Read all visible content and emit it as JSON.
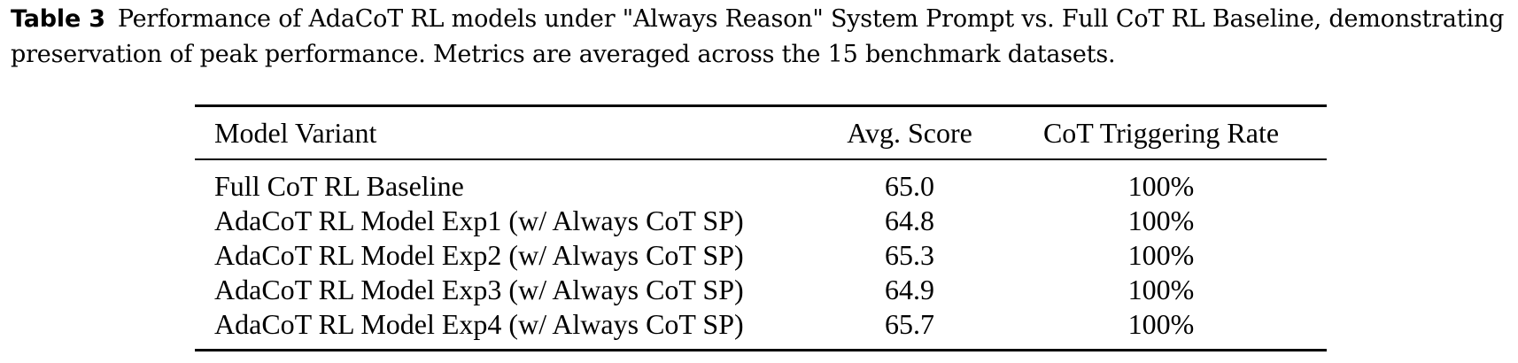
{
  "caption": {
    "label": "Table 3",
    "text": "Performance of AdaCoT RL models under \"Always Reason\" System Prompt vs. Full CoT RL Baseline, demonstrating preservation of peak performance. Metrics are averaged across the 15 benchmark datasets."
  },
  "table": {
    "headers": {
      "model": "Model Variant",
      "score": "Avg. Score",
      "rate": "CoT Triggering Rate"
    },
    "rows": [
      {
        "model": "Full CoT RL Baseline",
        "score": "65.0",
        "rate": "100%"
      },
      {
        "model": "AdaCoT RL Model Exp1 (w/ Always CoT SP)",
        "score": "64.8",
        "rate": "100%"
      },
      {
        "model": "AdaCoT RL Model Exp2 (w/ Always CoT SP)",
        "score": "65.3",
        "rate": "100%"
      },
      {
        "model": "AdaCoT RL Model Exp3 (w/ Always CoT SP)",
        "score": "64.9",
        "rate": "100%"
      },
      {
        "model": "AdaCoT RL Model Exp4 (w/ Always CoT SP)",
        "score": "65.7",
        "rate": "100%"
      }
    ]
  }
}
